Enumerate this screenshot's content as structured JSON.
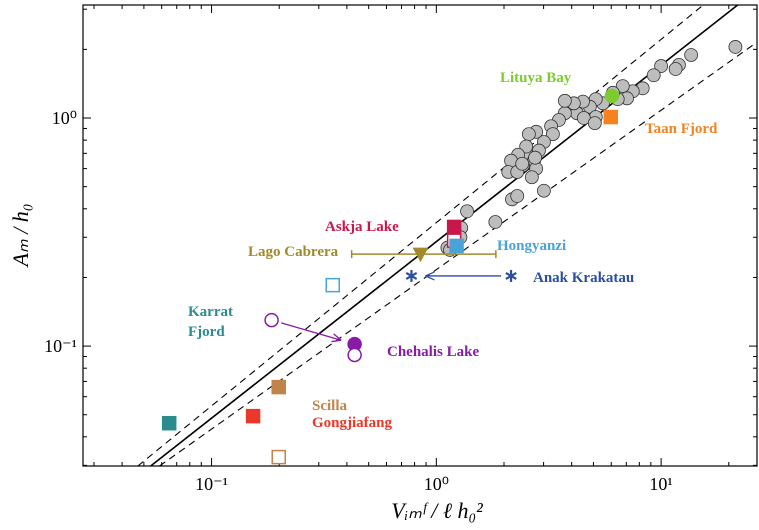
{
  "chart_data": {
    "type": "scatter",
    "x_label": "Vᵢₘᶠ / ℓ h₀²",
    "y_label": "Aₘ / h₀",
    "log_x": true,
    "log_y": true,
    "xlim": [
      0.0268,
      26.7
    ],
    "ylim": [
      0.0298,
      3.13
    ],
    "xticks": [
      {
        "value": 0.1,
        "label": "10⁻¹"
      },
      {
        "value": 1,
        "label": "10⁰"
      },
      {
        "value": 10,
        "label": "10¹"
      }
    ],
    "yticks": [
      {
        "value": 0.1,
        "label": "10⁻¹"
      },
      {
        "value": 1,
        "label": "10⁰"
      }
    ],
    "lines": [
      {
        "style": "solid",
        "x": [
          0.0536,
          21.9
        ],
        "y": [
          0.0298,
          3.13
        ]
      },
      {
        "style": "dashed",
        "x": [
          0.047,
          15.4
        ],
        "y": [
          0.0298,
          3.13
        ]
      },
      {
        "style": "dashed",
        "x": [
          0.0587,
          26.7
        ],
        "y": [
          0.0298,
          2.15
        ]
      }
    ],
    "background_points": {
      "color": "#bdbdbd",
      "x": [
        21.4,
        13.6,
        12.0,
        11.6,
        10.0,
        9.27,
        8.28,
        7.48,
        6.75,
        7.05,
        6.41,
        6.1,
        5.51,
        5.12,
        4.82,
        4.49,
        4.22,
        4.09,
        3.73,
        5.12,
        4.53,
        5.07,
        3.73,
        3.51,
        3.24,
        3.3,
        3.01,
        2.78,
        2.86,
        2.58,
        2.53,
        2.51,
        2.72,
        2.78,
        2.66,
        2.31,
        2.43,
        2.15,
        2.09,
        2.29,
        2.41,
        2.75,
        3.01,
        2.17,
        2.29,
        1.83,
        1.37,
        1.29,
        1.28,
        1.12,
        1.15
      ],
      "y": [
        2.05,
        1.89,
        1.71,
        1.64,
        1.69,
        1.54,
        1.35,
        1.31,
        1.38,
        1.22,
        1.21,
        1.29,
        1.16,
        1.21,
        1.12,
        1.18,
        1.05,
        1.16,
        1.05,
        1.01,
        1.0,
        0.95,
        1.19,
        0.98,
        0.92,
        0.85,
        0.785,
        0.87,
        0.72,
        0.85,
        0.69,
        0.75,
        0.65,
        0.6,
        0.55,
        0.69,
        0.62,
        0.65,
        0.58,
        0.58,
        0.63,
        0.67,
        0.48,
        0.44,
        0.455,
        0.35,
        0.39,
        0.33,
        0.3,
        0.27,
        0.264
      ]
    },
    "series": [
      {
        "name": "Lituya Bay",
        "color": "#7ccc2e",
        "marker": "circle",
        "x": [
          6.04
        ],
        "y": [
          1.25
        ],
        "filled": [
          true
        ]
      },
      {
        "name": "Taan Fjord",
        "color": "#f5821f",
        "marker": "square",
        "x": [
          5.97
        ],
        "y": [
          1.01
        ],
        "filled": [
          true
        ]
      },
      {
        "name": "Askja Lake",
        "color": "#c8174a",
        "marker": "square",
        "x": [
          1.2,
          1.2
        ],
        "y": [
          0.333,
          0.29
        ],
        "filled": [
          true,
          false
        ]
      },
      {
        "name": "Hongyanzi",
        "color": "#4aa3d6",
        "marker": "square",
        "x": [
          1.23,
          0.346
        ],
        "y": [
          0.275,
          0.185
        ],
        "filled": [
          true,
          false
        ]
      },
      {
        "name": "Lago Cabrera",
        "color": "#a08a2b",
        "marker": "triangle",
        "x": [
          0.85
        ],
        "y": [
          0.253
        ],
        "filled": [
          true
        ],
        "xmin": [
          0.42
        ],
        "xmax": [
          1.84
        ]
      },
      {
        "name": "Anak Krakatau",
        "color": "#2b4ea0",
        "marker": "asterisk",
        "x": [
          2.15,
          0.775
        ],
        "y": [
          0.203,
          0.203
        ],
        "filled": [
          true,
          true
        ],
        "arrow": true
      },
      {
        "name": "Karrat Fjord",
        "color": "#2a8c8c",
        "marker": "square",
        "x": [
          0.0648
        ],
        "y": [
          0.0459
        ],
        "filled": [
          true
        ]
      },
      {
        "name": "Chehalis Lake",
        "color": "#8a1aa8",
        "marker": "circle",
        "x": [
          0.185,
          0.433,
          0.433
        ],
        "y": [
          0.13,
          0.102,
          0.0914
        ],
        "filled": [
          false,
          true,
          false
        ],
        "arrow": true
      },
      {
        "name": "Scilla",
        "color": "#c0844a",
        "marker": "square",
        "x": [
          0.199,
          0.199
        ],
        "y": [
          0.0661,
          0.0326
        ],
        "filled": [
          true,
          false
        ]
      },
      {
        "name": "Gongjiafang",
        "color": "#e8392b",
        "marker": "square",
        "x": [
          0.153
        ],
        "y": [
          0.0493
        ],
        "filled": [
          true
        ]
      }
    ]
  }
}
